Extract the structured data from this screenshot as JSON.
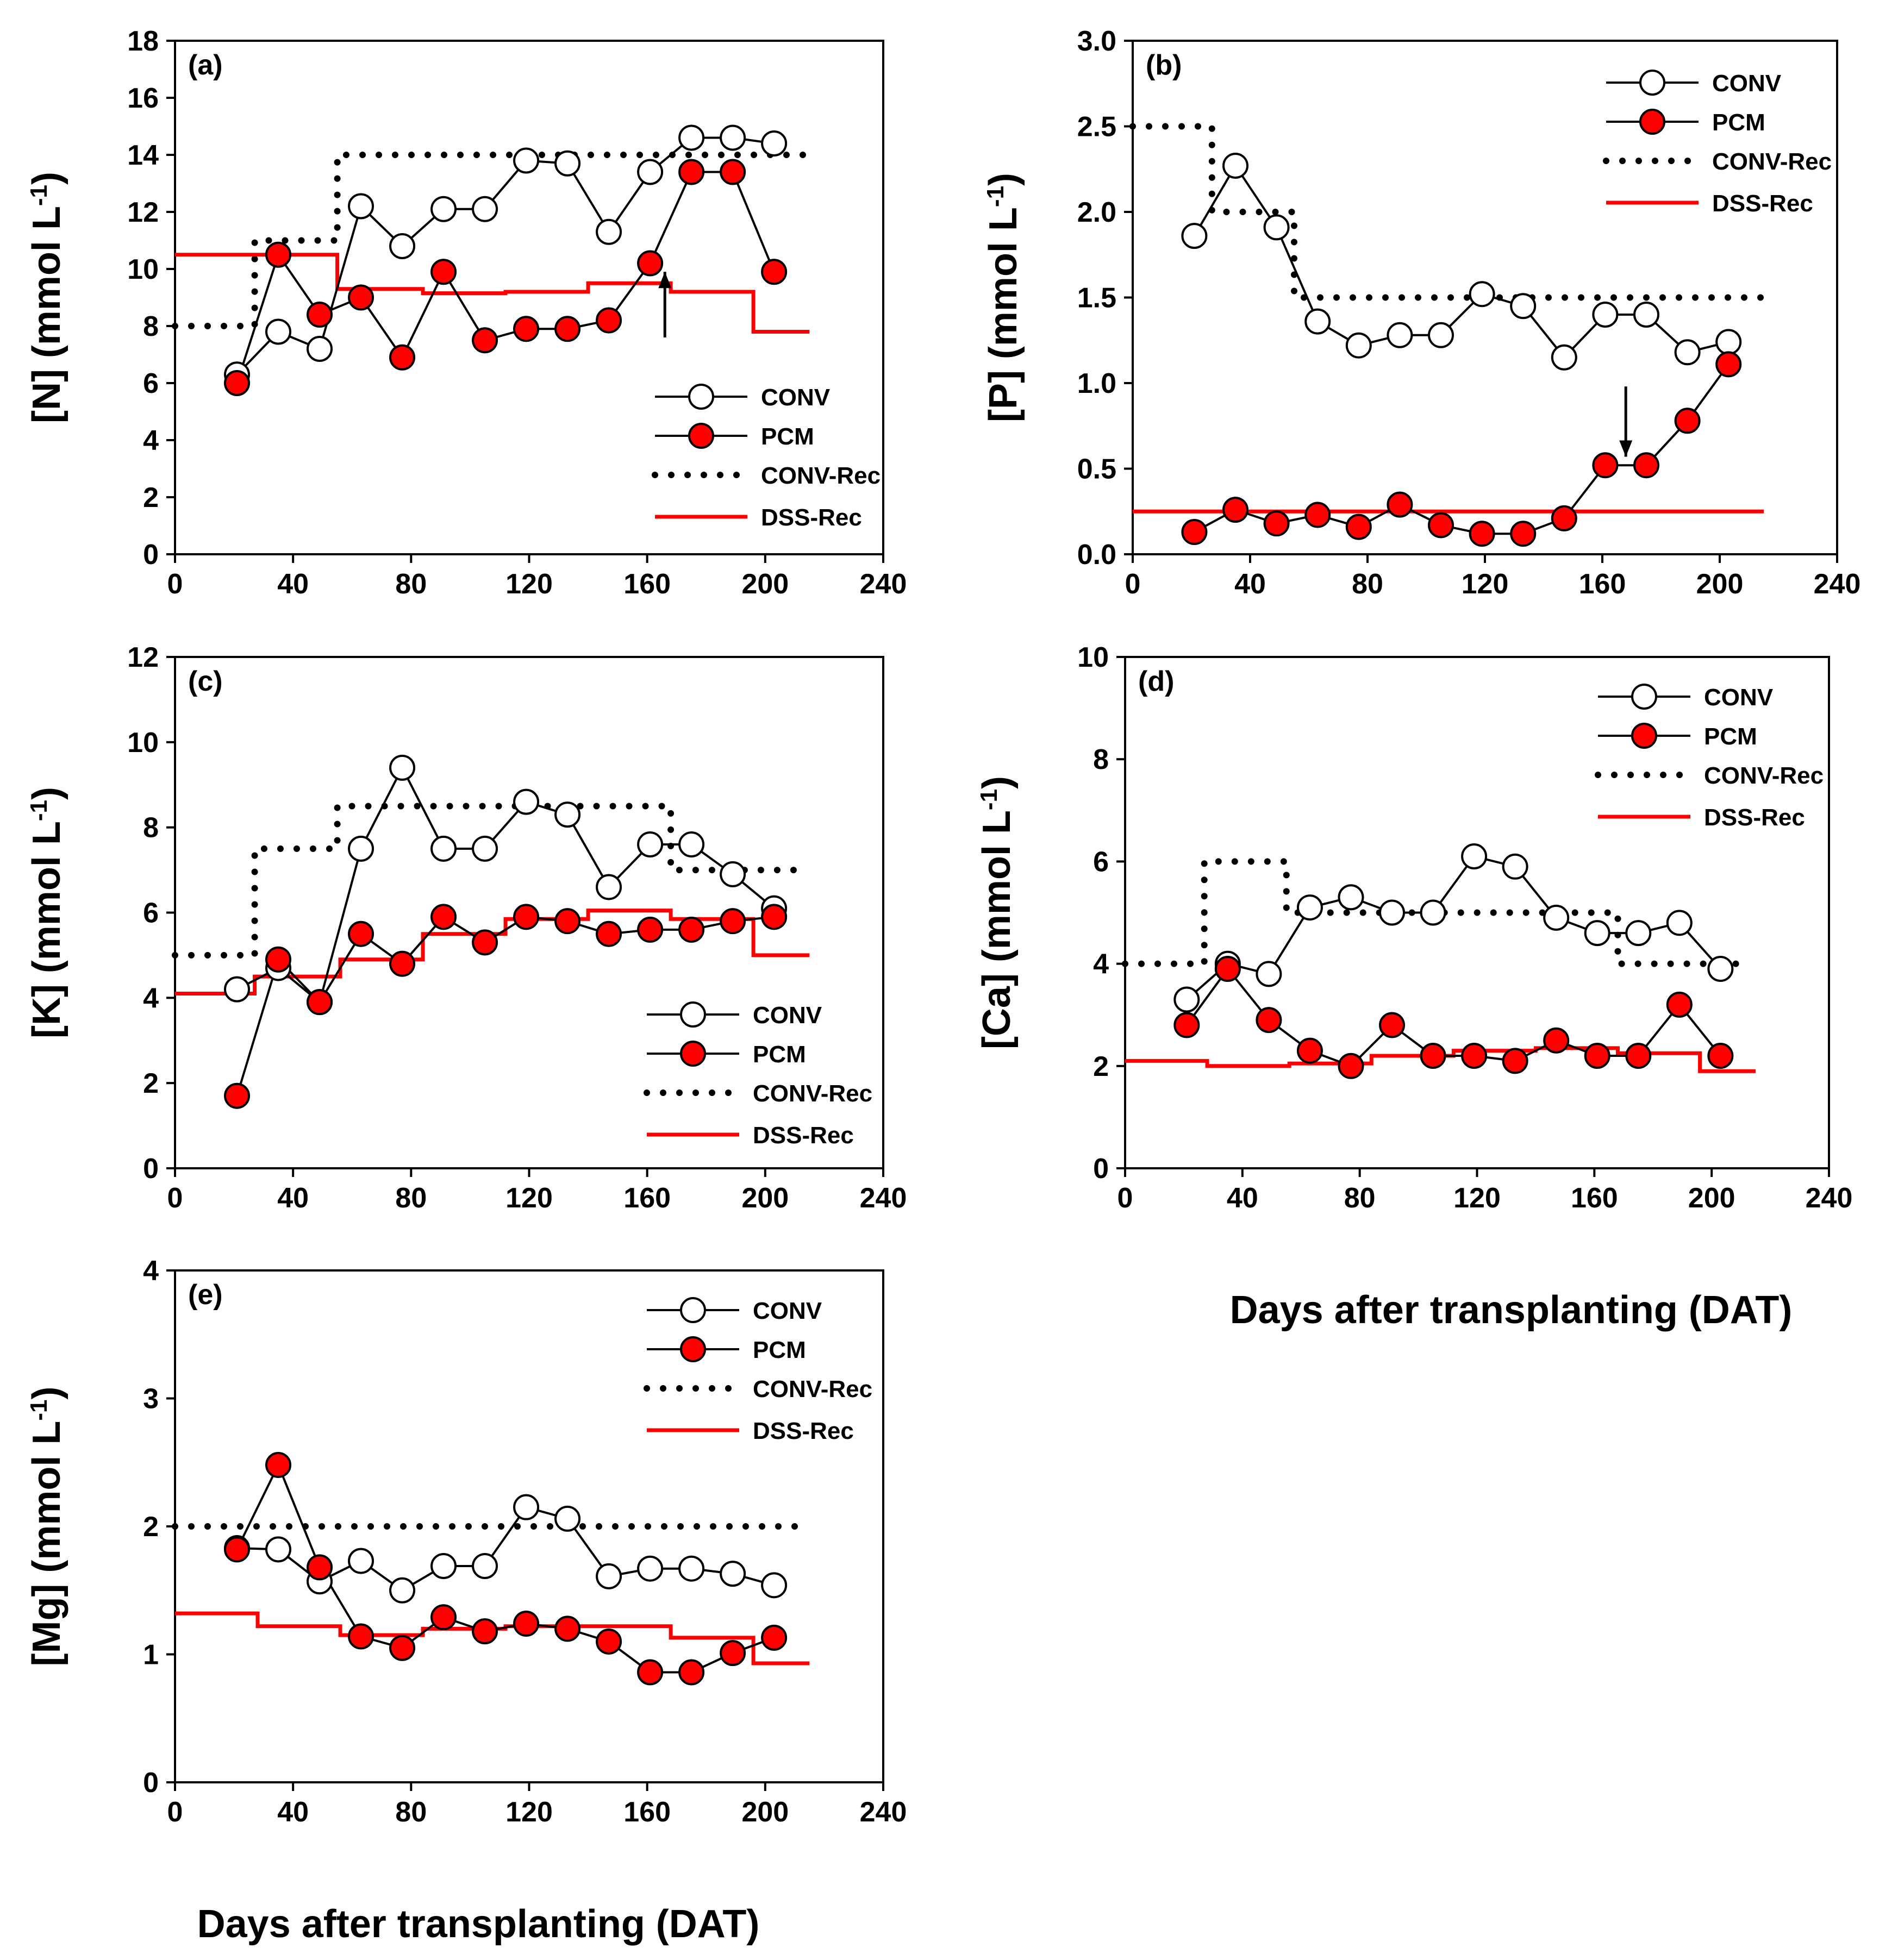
{
  "colors": {
    "conv_fill": "#ffffff",
    "pcm_fill": "#ff0000",
    "rec_line": "#ff0000",
    "ink": "#000000"
  },
  "x_label": "Days after transplanting (DAT)",
  "legend": {
    "conv": "CONV",
    "pcm": "PCM",
    "conv_rec": "CONV-Rec",
    "dss_rec": "DSS-Rec"
  },
  "chart_data": [
    {
      "id": "a",
      "type": "line",
      "panel_label": "(a)",
      "ylabel_main": "[N] (mmol L",
      "ylabel_sup": "-1",
      "ylabel_end": ")",
      "xlim": [
        0,
        240
      ],
      "ylim": [
        0,
        18
      ],
      "xticks": [
        0,
        40,
        80,
        120,
        160,
        200,
        240
      ],
      "yticks": [
        0,
        2,
        4,
        6,
        8,
        10,
        12,
        14,
        16,
        18
      ],
      "xtick_labels": [
        "0",
        "40",
        "80",
        "120",
        "160",
        "200",
        "240"
      ],
      "ytick_labels": [
        "0",
        "2",
        "4",
        "6",
        "8",
        "10",
        "12",
        "14",
        "16",
        "18"
      ],
      "series": [
        {
          "name": "CONV",
          "x": [
            21,
            35,
            49,
            63,
            77,
            91,
            105,
            119,
            133,
            147,
            161,
            175,
            189,
            203
          ],
          "y": [
            6.3,
            7.8,
            7.2,
            12.2,
            10.8,
            12.1,
            12.1,
            13.8,
            13.7,
            11.3,
            13.4,
            14.6,
            14.6,
            14.4
          ]
        },
        {
          "name": "PCM",
          "x": [
            21,
            35,
            49,
            63,
            77,
            91,
            105,
            119,
            133,
            147,
            161,
            175,
            189,
            203
          ],
          "y": [
            6.0,
            10.5,
            8.4,
            9.0,
            6.9,
            9.9,
            7.5,
            7.9,
            7.9,
            8.2,
            10.2,
            13.4,
            13.4,
            9.9
          ]
        },
        {
          "name": "CONV-Rec",
          "x": [
            0,
            27,
            27,
            55,
            55,
            215
          ],
          "y": [
            8,
            8,
            11,
            11,
            14,
            14
          ]
        },
        {
          "name": "DSS-Rec",
          "x": [
            0,
            55,
            55,
            84,
            84,
            112,
            112,
            140,
            140,
            168,
            168,
            196,
            196,
            215
          ],
          "y": [
            10.5,
            10.5,
            9.3,
            9.3,
            9.15,
            9.15,
            9.2,
            9.2,
            9.5,
            9.5,
            9.2,
            9.2,
            7.8,
            7.8
          ]
        }
      ],
      "arrow": {
        "x": 166,
        "y_from": 7.6,
        "y_to": 9.9
      },
      "legend_anchor": "right"
    },
    {
      "id": "b",
      "type": "line",
      "panel_label": "(b)",
      "ylabel_main": "[P] (mmol L",
      "ylabel_sup": "-1",
      "ylabel_end": ")",
      "xlim": [
        0,
        240
      ],
      "ylim": [
        0,
        3.0
      ],
      "xticks": [
        0,
        40,
        80,
        120,
        160,
        200,
        240
      ],
      "yticks": [
        0,
        0.5,
        1.0,
        1.5,
        2.0,
        2.5,
        3.0
      ],
      "xtick_labels": [
        "0",
        "40",
        "80",
        "120",
        "160",
        "200",
        "240"
      ],
      "ytick_labels": [
        "0.0",
        "0.5",
        "1.0",
        "1.5",
        "2.0",
        "2.5",
        "3.0"
      ],
      "series": [
        {
          "name": "CONV",
          "x": [
            21,
            35,
            49,
            63,
            77,
            91,
            105,
            119,
            133,
            147,
            161,
            175,
            189,
            203
          ],
          "y": [
            1.86,
            2.27,
            1.91,
            1.36,
            1.22,
            1.28,
            1.28,
            1.52,
            1.45,
            1.15,
            1.4,
            1.4,
            1.18,
            1.24
          ]
        },
        {
          "name": "PCM",
          "x": [
            21,
            35,
            49,
            63,
            77,
            91,
            105,
            119,
            133,
            147,
            161,
            175,
            189,
            203
          ],
          "y": [
            0.13,
            0.26,
            0.18,
            0.23,
            0.16,
            0.29,
            0.17,
            0.12,
            0.12,
            0.21,
            0.52,
            0.52,
            0.78,
            1.11
          ]
        },
        {
          "name": "CONV-Rec",
          "x": [
            0,
            27,
            27,
            55,
            55,
            215
          ],
          "y": [
            2.5,
            2.5,
            2.0,
            2.0,
            1.5,
            1.5
          ]
        },
        {
          "name": "DSS-Rec",
          "x": [
            0,
            215
          ],
          "y": [
            0.25,
            0.25
          ]
        }
      ],
      "arrow": {
        "x": 168,
        "y_from": 0.98,
        "y_to": 0.57
      },
      "legend_anchor": "right"
    },
    {
      "id": "c",
      "type": "line",
      "panel_label": "(c)",
      "ylabel_main": "[K] (mmol L",
      "ylabel_sup": "-1",
      "ylabel_end": ")",
      "xlim": [
        0,
        240
      ],
      "ylim": [
        0,
        12
      ],
      "xticks": [
        0,
        40,
        80,
        120,
        160,
        200,
        240
      ],
      "yticks": [
        0,
        2,
        4,
        6,
        8,
        10,
        12
      ],
      "xtick_labels": [
        "0",
        "40",
        "80",
        "120",
        "160",
        "200",
        "240"
      ],
      "ytick_labels": [
        "0",
        "2",
        "4",
        "6",
        "8",
        "10",
        "12"
      ],
      "series": [
        {
          "name": "CONV",
          "x": [
            21,
            35,
            49,
            63,
            77,
            91,
            105,
            119,
            133,
            147,
            161,
            175,
            189,
            203
          ],
          "y": [
            4.2,
            4.7,
            3.9,
            7.5,
            9.4,
            7.5,
            7.5,
            8.6,
            8.3,
            6.6,
            7.6,
            7.6,
            6.9,
            6.1
          ]
        },
        {
          "name": "PCM",
          "x": [
            21,
            35,
            49,
            63,
            77,
            91,
            105,
            119,
            133,
            147,
            161,
            175,
            189,
            203
          ],
          "y": [
            1.7,
            4.9,
            3.9,
            5.5,
            4.8,
            5.9,
            5.3,
            5.9,
            5.8,
            5.5,
            5.6,
            5.6,
            5.8,
            5.9
          ]
        },
        {
          "name": "CONV-Rec",
          "x": [
            0,
            27,
            27,
            55,
            55,
            168,
            168,
            215
          ],
          "y": [
            5,
            5,
            7.5,
            7.5,
            8.5,
            8.5,
            7,
            7
          ]
        },
        {
          "name": "DSS-Rec",
          "x": [
            0,
            27,
            27,
            56,
            56,
            84,
            84,
            112,
            112,
            140,
            140,
            168,
            168,
            196,
            196,
            215
          ],
          "y": [
            4.1,
            4.1,
            4.5,
            4.5,
            4.9,
            4.9,
            5.5,
            5.5,
            5.85,
            5.85,
            6.05,
            6.05,
            5.85,
            5.85,
            5.0,
            5.0
          ]
        }
      ],
      "legend_anchor": "right"
    },
    {
      "id": "d",
      "type": "line",
      "panel_label": "(d)",
      "ylabel_main": "[Ca] (mmol L",
      "ylabel_sup": "-1",
      "ylabel_end": ")",
      "xlim": [
        0,
        240
      ],
      "ylim": [
        0,
        10
      ],
      "xticks": [
        0,
        40,
        80,
        120,
        160,
        200,
        240
      ],
      "yticks": [
        0,
        2,
        4,
        6,
        8,
        10
      ],
      "xtick_labels": [
        "0",
        "40",
        "80",
        "120",
        "160",
        "200",
        "240"
      ],
      "ytick_labels": [
        "0",
        "2",
        "4",
        "6",
        "8",
        "10"
      ],
      "series": [
        {
          "name": "CONV",
          "x": [
            21,
            35,
            49,
            63,
            77,
            91,
            105,
            119,
            133,
            147,
            161,
            175,
            189,
            203
          ],
          "y": [
            3.3,
            4.0,
            3.8,
            5.1,
            5.3,
            5.0,
            5.0,
            6.1,
            5.9,
            4.9,
            4.6,
            4.6,
            4.8,
            3.9
          ]
        },
        {
          "name": "PCM",
          "x": [
            21,
            35,
            49,
            63,
            77,
            91,
            105,
            119,
            133,
            147,
            161,
            175,
            189,
            203
          ],
          "y": [
            2.8,
            3.9,
            2.9,
            2.3,
            2.0,
            2.8,
            2.2,
            2.2,
            2.1,
            2.5,
            2.2,
            2.2,
            3.2,
            2.2
          ]
        },
        {
          "name": "CONV-Rec",
          "x": [
            0,
            27,
            27,
            55,
            55,
            168,
            168,
            210
          ],
          "y": [
            4,
            4,
            6,
            6,
            5,
            5,
            4,
            4
          ]
        },
        {
          "name": "DSS-Rec",
          "x": [
            0,
            28,
            28,
            56,
            56,
            84,
            84,
            112,
            112,
            140,
            140,
            168,
            168,
            196,
            196,
            215
          ],
          "y": [
            2.1,
            2.1,
            2.0,
            2.0,
            2.05,
            2.05,
            2.2,
            2.2,
            2.3,
            2.3,
            2.35,
            2.35,
            2.25,
            2.25,
            1.9,
            1.9
          ]
        }
      ],
      "legend_anchor": "right"
    },
    {
      "id": "e",
      "type": "line",
      "panel_label": "(e)",
      "ylabel_main": "[Mg] (mmol L",
      "ylabel_sup": "-1",
      "ylabel_end": ")",
      "xlim": [
        0,
        240
      ],
      "ylim": [
        0,
        4
      ],
      "xticks": [
        0,
        40,
        80,
        120,
        160,
        200,
        240
      ],
      "yticks": [
        0,
        1,
        2,
        3,
        4
      ],
      "xtick_labels": [
        "0",
        "40",
        "80",
        "120",
        "160",
        "200",
        "240"
      ],
      "ytick_labels": [
        "0",
        "1",
        "2",
        "3",
        "4"
      ],
      "series": [
        {
          "name": "CONV",
          "x": [
            21,
            35,
            49,
            63,
            77,
            91,
            105,
            119,
            133,
            147,
            161,
            175,
            189,
            203
          ],
          "y": [
            1.83,
            1.82,
            1.57,
            1.73,
            1.5,
            1.69,
            1.69,
            2.15,
            2.06,
            1.61,
            1.67,
            1.67,
            1.63,
            1.54
          ]
        },
        {
          "name": "PCM",
          "x": [
            21,
            35,
            49,
            63,
            77,
            91,
            105,
            119,
            133,
            147,
            161,
            175,
            189,
            203
          ],
          "y": [
            1.82,
            2.48,
            1.68,
            1.14,
            1.05,
            1.29,
            1.18,
            1.24,
            1.2,
            1.1,
            0.86,
            0.86,
            1.01,
            1.13
          ]
        },
        {
          "name": "CONV-Rec",
          "x": [
            0,
            215
          ],
          "y": [
            2.0,
            2.0
          ]
        },
        {
          "name": "DSS-Rec",
          "x": [
            0,
            28,
            28,
            56,
            56,
            84,
            84,
            112,
            112,
            140,
            140,
            168,
            168,
            196,
            196,
            215
          ],
          "y": [
            1.32,
            1.32,
            1.22,
            1.22,
            1.15,
            1.15,
            1.2,
            1.2,
            1.22,
            1.22,
            1.22,
            1.22,
            1.13,
            1.13,
            0.93,
            0.93
          ]
        }
      ],
      "legend_anchor": "right"
    }
  ]
}
